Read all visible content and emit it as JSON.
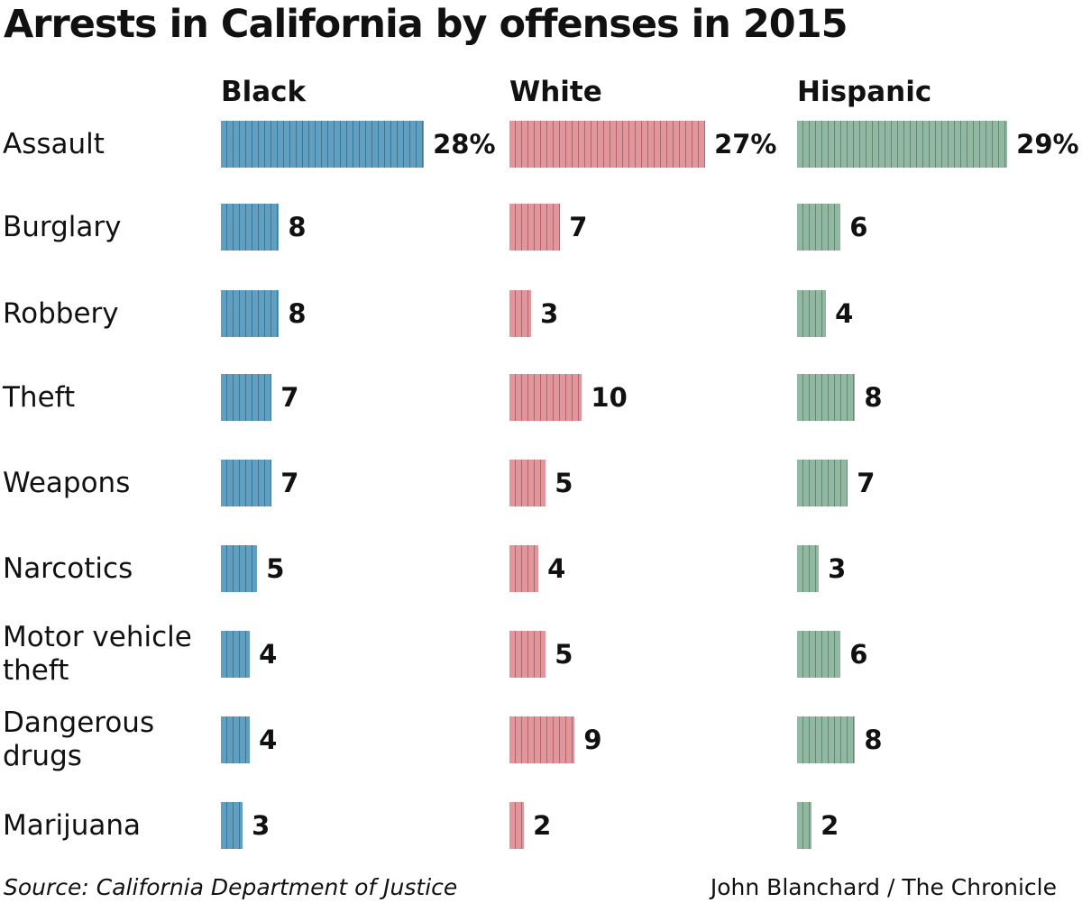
{
  "chart_data": {
    "type": "bar",
    "title": "Arrests in California by offenses in 2015",
    "categories": [
      "Assault",
      "Burglary",
      "Robbery",
      "Theft",
      "Weapons",
      "Narcotics",
      "Motor vehicle theft",
      "Dangerous drugs",
      "Marijuana"
    ],
    "series": [
      {
        "name": "Black",
        "color": "#5f9fc2",
        "values": [
          28,
          8,
          8,
          7,
          7,
          5,
          4,
          4,
          3
        ],
        "value_labels": [
          "28%",
          "8",
          "8",
          "7",
          "7",
          "5",
          "4",
          "4",
          "3"
        ]
      },
      {
        "name": "White",
        "color": "#e3959c",
        "values": [
          27,
          7,
          3,
          10,
          5,
          4,
          5,
          9,
          2
        ],
        "value_labels": [
          "27%",
          "7",
          "3",
          "10",
          "5",
          "4",
          "5",
          "9",
          "2"
        ]
      },
      {
        "name": "Hispanic",
        "color": "#91b9a2",
        "values": [
          29,
          6,
          4,
          8,
          7,
          3,
          6,
          8,
          2
        ],
        "value_labels": [
          "29%",
          "6",
          "4",
          "8",
          "7",
          "3",
          "6",
          "8",
          "2"
        ]
      }
    ],
    "source": "Source: California Department of Justice",
    "credit": "John Blanchard / The Chronicle"
  }
}
